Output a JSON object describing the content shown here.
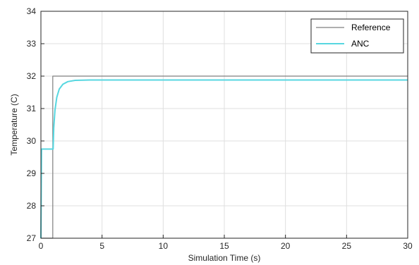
{
  "chart_data": {
    "type": "line",
    "title": "",
    "xlabel": "Simulation Time (s)",
    "ylabel": "Temperature (C)",
    "xlim": [
      0,
      30
    ],
    "ylim": [
      27,
      34
    ],
    "xticks": [
      0,
      5,
      10,
      15,
      20,
      25,
      30
    ],
    "yticks": [
      27,
      28,
      29,
      30,
      31,
      32,
      33,
      34
    ],
    "grid": true,
    "legend_position": "top-right",
    "series": [
      {
        "name": "Reference",
        "color": "#7f7f7f",
        "points": [
          [
            0,
            27
          ],
          [
            0.97,
            27
          ],
          [
            0.97,
            32
          ],
          [
            30,
            32
          ]
        ]
      },
      {
        "name": "ANC",
        "color": "#57d7e0",
        "points": [
          [
            0,
            27
          ],
          [
            0.05,
            29.75
          ],
          [
            1.0,
            29.75
          ],
          [
            1.05,
            30.4
          ],
          [
            1.15,
            30.95
          ],
          [
            1.3,
            31.35
          ],
          [
            1.5,
            31.6
          ],
          [
            1.8,
            31.75
          ],
          [
            2.2,
            31.83
          ],
          [
            2.8,
            31.87
          ],
          [
            4,
            31.88
          ],
          [
            30,
            31.88
          ]
        ]
      }
    ]
  }
}
